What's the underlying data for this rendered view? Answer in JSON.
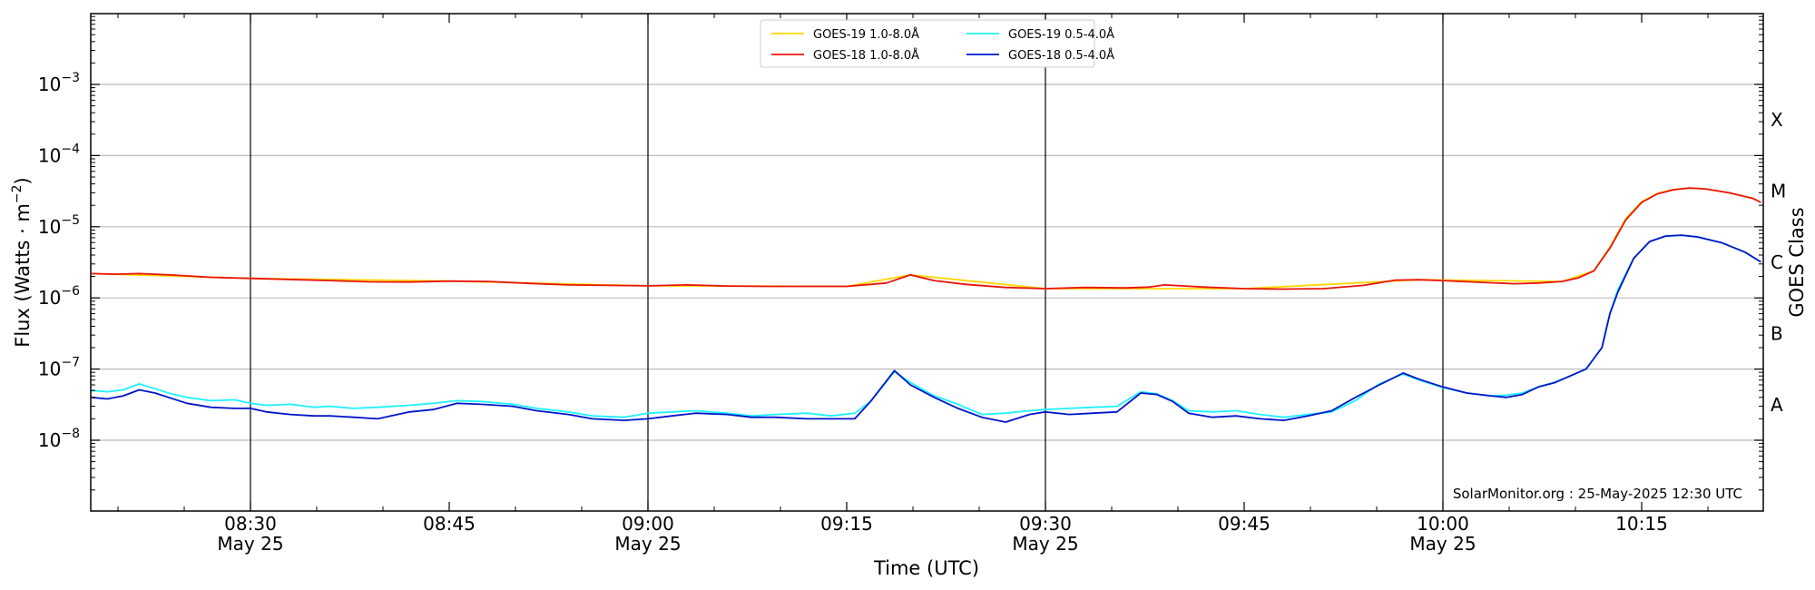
{
  "chart_data": {
    "type": "line",
    "title": "",
    "xlabel": "Time (UTC)",
    "ylabel_base": "Flux (Watts · m",
    "ylabel_exp": "−2",
    "ylabel_close": ")",
    "right_ylabel": "GOES Class",
    "yscale": "log",
    "ylim": [
      1e-09,
      0.01
    ],
    "xlim_minutes": [
      8.5,
      10.42
    ],
    "grid": "horizontal",
    "legend_position": "top-center",
    "credit": "SolarMonitor.org : 25-May-2025 12:30 UTC",
    "x_ticks": [
      {
        "value": 8.5,
        "label": "08:30",
        "sublabel": "May 25"
      },
      {
        "value": 8.75,
        "label": "08:45",
        "sublabel": ""
      },
      {
        "value": 9.0,
        "label": "09:00",
        "sublabel": "May 25"
      },
      {
        "value": 9.25,
        "label": "09:15",
        "sublabel": ""
      },
      {
        "value": 9.5,
        "label": "09:30",
        "sublabel": "May 25"
      },
      {
        "value": 9.75,
        "label": "09:45",
        "sublabel": ""
      },
      {
        "value": 10.0,
        "label": "10:00",
        "sublabel": "May 25"
      },
      {
        "value": 10.25,
        "label": "10:15",
        "sublabel": ""
      }
    ],
    "y_ticks": [
      {
        "value": 1e-08,
        "base": "10",
        "exp": "−8"
      },
      {
        "value": 1e-07,
        "base": "10",
        "exp": "−7"
      },
      {
        "value": 1e-06,
        "base": "10",
        "exp": "−6"
      },
      {
        "value": 1e-05,
        "base": "10",
        "exp": "−5"
      },
      {
        "value": 0.0001,
        "base": "10",
        "exp": "−4"
      },
      {
        "value": 0.001,
        "base": "10",
        "exp": "−3"
      }
    ],
    "goes_classes": [
      {
        "label": "A",
        "value": 3.16e-08
      },
      {
        "label": "B",
        "value": 3.16e-07
      },
      {
        "label": "C",
        "value": 3.16e-06
      },
      {
        "label": "M",
        "value": 3.16e-05
      },
      {
        "label": "X",
        "value": 0.000316
      }
    ],
    "day_markers": [
      8.5,
      9.0,
      9.5,
      10.0
    ],
    "colors": {
      "goes19_long": "#ffd700",
      "goes18_long": "#e8140a",
      "goes19_short": "#1ef2ff",
      "goes18_short": "#0015c8",
      "grid": "#bbbbbb",
      "marker": "#000000"
    },
    "legend": [
      {
        "series": "goes19_long",
        "label": "GOES-19 1.0-8.0Å"
      },
      {
        "series": "goes19_short",
        "label": "GOES-19 0.5-4.0Å"
      },
      {
        "series": "goes18_long",
        "label": "GOES-18 1.0-8.0Å"
      },
      {
        "series": "goes18_short",
        "label": "GOES-18 0.5-4.0Å"
      }
    ],
    "series": [
      {
        "key": "goes18_long",
        "name": "GOES-18 1.0-8.0Å",
        "color": "#e8140a",
        "x": [
          8.3,
          8.33,
          8.36,
          8.4,
          8.45,
          8.5,
          8.6,
          8.65,
          8.7,
          8.75,
          8.8,
          8.85,
          8.9,
          8.95,
          9.0,
          9.05,
          9.1,
          9.15,
          9.2,
          9.25,
          9.3,
          9.33,
          9.36,
          9.4,
          9.45,
          9.5,
          9.55,
          9.6,
          9.63,
          9.65,
          9.7,
          9.75,
          9.8,
          9.85,
          9.9,
          9.94,
          9.97,
          10.0,
          10.05,
          10.09,
          10.12,
          10.15,
          10.17,
          10.19,
          10.21,
          10.23,
          10.25,
          10.27,
          10.29,
          10.31,
          10.33,
          10.36,
          10.39,
          10.4
        ],
        "y": [
          2.2e-06,
          2.15e-06,
          2.2e-06,
          2.1e-06,
          1.95e-06,
          1.88e-06,
          1.75e-06,
          1.68e-06,
          1.67e-06,
          1.72e-06,
          1.7e-06,
          1.6e-06,
          1.52e-06,
          1.5e-06,
          1.48e-06,
          1.52e-06,
          1.47e-06,
          1.45e-06,
          1.45e-06,
          1.45e-06,
          1.62e-06,
          2.1e-06,
          1.75e-06,
          1.55e-06,
          1.4e-06,
          1.35e-06,
          1.4e-06,
          1.38e-06,
          1.42e-06,
          1.52e-06,
          1.42e-06,
          1.35e-06,
          1.33e-06,
          1.35e-06,
          1.5e-06,
          1.78e-06,
          1.8e-06,
          1.75e-06,
          1.65e-06,
          1.58e-06,
          1.62e-06,
          1.7e-06,
          1.9e-06,
          2.4e-06,
          5e-06,
          1.25e-05,
          2.2e-05,
          2.9e-05,
          3.3e-05,
          3.5e-05,
          3.4e-05,
          3e-05,
          2.5e-05,
          2.2e-05
        ]
      },
      {
        "key": "goes19_long",
        "name": "GOES-19 1.0-8.0Å",
        "color": "#ffd700",
        "x": [
          8.3,
          8.5,
          8.75,
          9.0,
          9.25,
          9.33,
          9.5,
          9.75,
          9.97,
          10.15,
          10.19,
          10.21,
          10.23,
          10.25,
          10.27,
          10.29,
          10.31,
          10.33,
          10.36,
          10.39,
          10.4
        ],
        "y": [
          2.2e-06,
          1.88e-06,
          1.72e-06,
          1.48e-06,
          1.45e-06,
          2.1e-06,
          1.35e-06,
          1.35e-06,
          1.8e-06,
          1.7e-06,
          2.4e-06,
          5.2e-06,
          1.3e-05,
          2.25e-05,
          2.95e-05,
          3.35e-05,
          3.5e-05,
          3.4e-05,
          3e-05,
          2.5e-05,
          2.2e-05
        ]
      },
      {
        "key": "goes19_short",
        "name": "GOES-19 0.5-4.0Å",
        "color": "#1ef2ff",
        "x": [
          8.3,
          8.32,
          8.34,
          8.36,
          8.38,
          8.4,
          8.42,
          8.45,
          8.48,
          8.5,
          8.52,
          8.55,
          8.58,
          8.6,
          8.63,
          8.66,
          8.7,
          8.73,
          8.76,
          8.79,
          8.83,
          8.86,
          8.9,
          8.93,
          8.97,
          9.0,
          9.03,
          9.06,
          9.1,
          9.13,
          9.16,
          9.2,
          9.23,
          9.26,
          9.28,
          9.31,
          9.33,
          9.36,
          9.39,
          9.42,
          9.45,
          9.48,
          9.5,
          9.53,
          9.56,
          9.59,
          9.62,
          9.64,
          9.66,
          9.68,
          9.71,
          9.74,
          9.77,
          9.8,
          9.83,
          9.86,
          9.89,
          9.92,
          9.95,
          9.97,
          10.0,
          10.03,
          10.06,
          10.08,
          10.1,
          10.12,
          10.14,
          10.16,
          10.18,
          10.2,
          10.21,
          10.22,
          10.24,
          10.26,
          10.28,
          10.3,
          10.32,
          10.35,
          10.38,
          10.4
        ],
        "y": [
          5e-08,
          4.8e-08,
          5.1e-08,
          6.2e-08,
          5.3e-08,
          4.5e-08,
          4e-08,
          3.6e-08,
          3.7e-08,
          3.3e-08,
          3.1e-08,
          3.2e-08,
          2.9e-08,
          3e-08,
          2.8e-08,
          2.9e-08,
          3.1e-08,
          3.3e-08,
          3.6e-08,
          3.5e-08,
          3.2e-08,
          2.8e-08,
          2.5e-08,
          2.2e-08,
          2.1e-08,
          2.4e-08,
          2.5e-08,
          2.6e-08,
          2.4e-08,
          2.2e-08,
          2.3e-08,
          2.4e-08,
          2.2e-08,
          2.4e-08,
          3.5e-08,
          9.2e-08,
          6.5e-08,
          4.2e-08,
          3.2e-08,
          2.3e-08,
          2.4e-08,
          2.6e-08,
          2.7e-08,
          2.8e-08,
          2.9e-08,
          3e-08,
          4.8e-08,
          4.5e-08,
          3.6e-08,
          2.6e-08,
          2.5e-08,
          2.6e-08,
          2.3e-08,
          2.1e-08,
          2.3e-08,
          2.5e-08,
          3.6e-08,
          6.2e-08,
          8.5e-08,
          7e-08,
          5.5e-08,
          4.6e-08,
          4.2e-08,
          4.3e-08,
          4.6e-08,
          5.6e-08,
          6.5e-08,
          8e-08,
          1e-07,
          2e-07,
          6e-07,
          1.3e-06,
          3.6e-06,
          6.2e-06,
          7.4e-06,
          7.6e-06,
          7.2e-06,
          6e-06,
          4.4e-06,
          3.2e-06
        ]
      },
      {
        "key": "goes18_short",
        "name": "GOES-18 0.5-4.0Å",
        "color": "#0015c8",
        "x": [
          8.3,
          8.32,
          8.34,
          8.36,
          8.38,
          8.4,
          8.42,
          8.45,
          8.48,
          8.5,
          8.52,
          8.55,
          8.58,
          8.6,
          8.63,
          8.66,
          8.7,
          8.73,
          8.76,
          8.79,
          8.83,
          8.86,
          8.9,
          8.93,
          8.97,
          9.0,
          9.03,
          9.06,
          9.1,
          9.13,
          9.16,
          9.2,
          9.23,
          9.26,
          9.28,
          9.31,
          9.33,
          9.36,
          9.39,
          9.42,
          9.45,
          9.48,
          9.5,
          9.53,
          9.56,
          9.59,
          9.62,
          9.64,
          9.66,
          9.68,
          9.71,
          9.74,
          9.77,
          9.8,
          9.83,
          9.86,
          9.89,
          9.92,
          9.95,
          9.97,
          10.0,
          10.03,
          10.06,
          10.08,
          10.1,
          10.12,
          10.14,
          10.16,
          10.18,
          10.2,
          10.21,
          10.22,
          10.24,
          10.26,
          10.28,
          10.3,
          10.32,
          10.35,
          10.38,
          10.4
        ],
        "y": [
          4e-08,
          3.8e-08,
          4.2e-08,
          5.1e-08,
          4.6e-08,
          3.9e-08,
          3.3e-08,
          2.9e-08,
          2.8e-08,
          2.8e-08,
          2.5e-08,
          2.3e-08,
          2.2e-08,
          2.2e-08,
          2.1e-08,
          2e-08,
          2.5e-08,
          2.7e-08,
          3.3e-08,
          3.2e-08,
          3e-08,
          2.6e-08,
          2.3e-08,
          2e-08,
          1.9e-08,
          2e-08,
          2.2e-08,
          2.4e-08,
          2.3e-08,
          2.1e-08,
          2.1e-08,
          2e-08,
          2e-08,
          2e-08,
          3.5e-08,
          9.5e-08,
          6e-08,
          4e-08,
          2.8e-08,
          2.1e-08,
          1.8e-08,
          2.3e-08,
          2.5e-08,
          2.3e-08,
          2.4e-08,
          2.5e-08,
          4.6e-08,
          4.4e-08,
          3.5e-08,
          2.4e-08,
          2.1e-08,
          2.2e-08,
          2e-08,
          1.9e-08,
          2.2e-08,
          2.6e-08,
          4e-08,
          6e-08,
          8.8e-08,
          7.2e-08,
          5.6e-08,
          4.6e-08,
          4.2e-08,
          4e-08,
          4.4e-08,
          5.6e-08,
          6.4e-08,
          8e-08,
          1e-07,
          2e-07,
          6e-07,
          1.2e-06,
          3.6e-06,
          6.2e-06,
          7.4e-06,
          7.6e-06,
          7.2e-06,
          6e-06,
          4.4e-06,
          3.2e-06
        ]
      }
    ]
  }
}
